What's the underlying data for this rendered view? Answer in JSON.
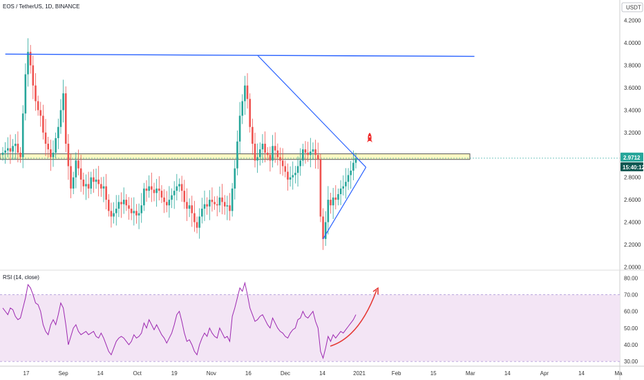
{
  "header": {
    "symbol_title": "EOS / TetherUS, 1D, BINANCE",
    "currency": "USDT"
  },
  "price_tag": {
    "value": "2.9712",
    "countdown": "15:40:12"
  },
  "rsi_label": "RSI (14, close)",
  "colors": {
    "up": "#26a69a",
    "down": "#ef5350",
    "trendline": "#2962ff",
    "band_fill": "#fff9c4",
    "band_stroke": "#555555",
    "rsi_line": "#9c27b0",
    "rsi_band": "#f3e5f5",
    "arrow": "#e53935",
    "tag_bg": "#26a69a",
    "tag_dark": "#0e5751"
  },
  "icons": {
    "rocket": "rocket-icon"
  },
  "chart_data": [
    {
      "type": "candlestick",
      "title": "EOS / TetherUS, 1D, BINANCE",
      "y_unit": "USDT",
      "ylim": [
        1.99,
        4.26
      ],
      "y_ticks": [
        "4.2000",
        "4.0000",
        "3.8000",
        "3.6000",
        "3.4000",
        "3.2000",
        "3.0000",
        "2.8000",
        "2.6000",
        "2.4000",
        "2.2000",
        "2.0000"
      ],
      "x_ticks": [
        "17",
        "Sep",
        "14",
        "Oct",
        "19",
        "Nov",
        "16",
        "Dec",
        "14",
        "2021",
        "Feb",
        "15",
        "Mar",
        "14",
        "Apr",
        "14",
        "Ma"
      ],
      "last_price": 2.9712,
      "horizontal_band": [
        2.96,
        3.01
      ],
      "resistance_line": {
        "from": [
          1,
          3.9
        ],
        "to": [
          187,
          3.88
        ]
      },
      "triangle": [
        {
          "from": [
            101,
            3.89
          ],
          "to": [
            144,
            2.89
          ]
        },
        {
          "from": [
            127,
            2.25
          ],
          "to": [
            144,
            2.89
          ]
        }
      ],
      "closes": [
        3.02,
        3.04,
        3.06,
        3.03,
        3.08,
        3.1,
        3.02,
        2.98,
        3.37,
        3.72,
        3.92,
        3.8,
        3.62,
        3.48,
        3.4,
        3.35,
        3.2,
        3.1,
        3.05,
        2.98,
        3.02,
        3.15,
        3.25,
        3.4,
        3.55,
        3.1,
        2.9,
        2.7,
        2.8,
        2.95,
        2.88,
        2.78,
        2.72,
        2.74,
        2.7,
        2.8,
        2.76,
        2.78,
        2.74,
        2.7,
        2.72,
        2.6,
        2.5,
        2.45,
        2.48,
        2.52,
        2.58,
        2.56,
        2.6,
        2.55,
        2.52,
        2.48,
        2.5,
        2.46,
        2.48,
        2.55,
        2.7,
        2.68,
        2.72,
        2.69,
        2.66,
        2.7,
        2.68,
        2.62,
        2.58,
        2.55,
        2.6,
        2.64,
        2.68,
        2.72,
        2.74,
        2.68,
        2.58,
        2.52,
        2.55,
        2.48,
        2.4,
        2.35,
        2.45,
        2.52,
        2.56,
        2.54,
        2.6,
        2.58,
        2.56,
        2.55,
        2.62,
        2.58,
        2.54,
        2.55,
        2.5,
        2.7,
        2.88,
        3.12,
        3.35,
        3.48,
        3.62,
        3.5,
        3.25,
        3.1,
        2.95,
        2.98,
        3.05,
        3.1,
        3.02,
        3.0,
        2.95,
        3.08,
        3.04,
        2.98,
        2.95,
        2.9,
        2.85,
        2.78,
        2.8,
        2.82,
        2.84,
        2.9,
        2.95,
        3.05,
        3.02,
        3.0,
        3.03,
        3.05,
        3.0,
        2.96,
        2.45,
        2.25,
        2.4,
        2.6,
        2.55,
        2.62,
        2.6,
        2.65,
        2.7,
        2.72,
        2.76,
        2.82,
        2.86,
        2.93,
        2.97
      ],
      "rsi": {
        "label": "RSI (14, close)",
        "ylim": [
          28,
          83
        ],
        "y_ticks": [
          "80.00",
          "70.00",
          "60.00",
          "50.00",
          "40.00",
          "30.00"
        ],
        "band": [
          30,
          70
        ],
        "values": [
          62,
          60,
          58,
          62,
          61,
          57,
          55,
          56,
          62,
          68,
          76,
          74,
          70,
          65,
          64,
          60,
          52,
          48,
          46,
          52,
          55,
          52,
          58,
          65,
          62,
          52,
          40,
          45,
          50,
          52,
          48,
          46,
          47,
          48,
          46,
          47,
          48,
          45,
          44,
          47,
          44,
          40,
          36,
          34,
          38,
          42,
          44,
          45,
          44,
          42,
          40,
          42,
          46,
          44,
          45,
          47,
          53,
          50,
          55,
          52,
          49,
          52,
          49,
          46,
          44,
          41,
          44,
          47,
          52,
          58,
          60,
          54,
          47,
          42,
          43,
          40,
          36,
          34,
          40,
          44,
          47,
          45,
          50,
          47,
          45,
          44,
          50,
          47,
          44,
          45,
          42,
          57,
          62,
          68,
          74,
          72,
          77,
          70,
          62,
          58,
          54,
          55,
          57,
          58,
          55,
          52,
          50,
          56,
          53,
          50,
          48,
          47,
          45,
          44,
          47,
          49,
          50,
          55,
          56,
          60,
          57,
          56,
          58,
          60,
          54,
          50,
          36,
          32,
          38,
          45,
          42,
          46,
          44,
          46,
          48,
          47,
          49,
          51,
          53,
          55,
          58
        ]
      }
    }
  ]
}
